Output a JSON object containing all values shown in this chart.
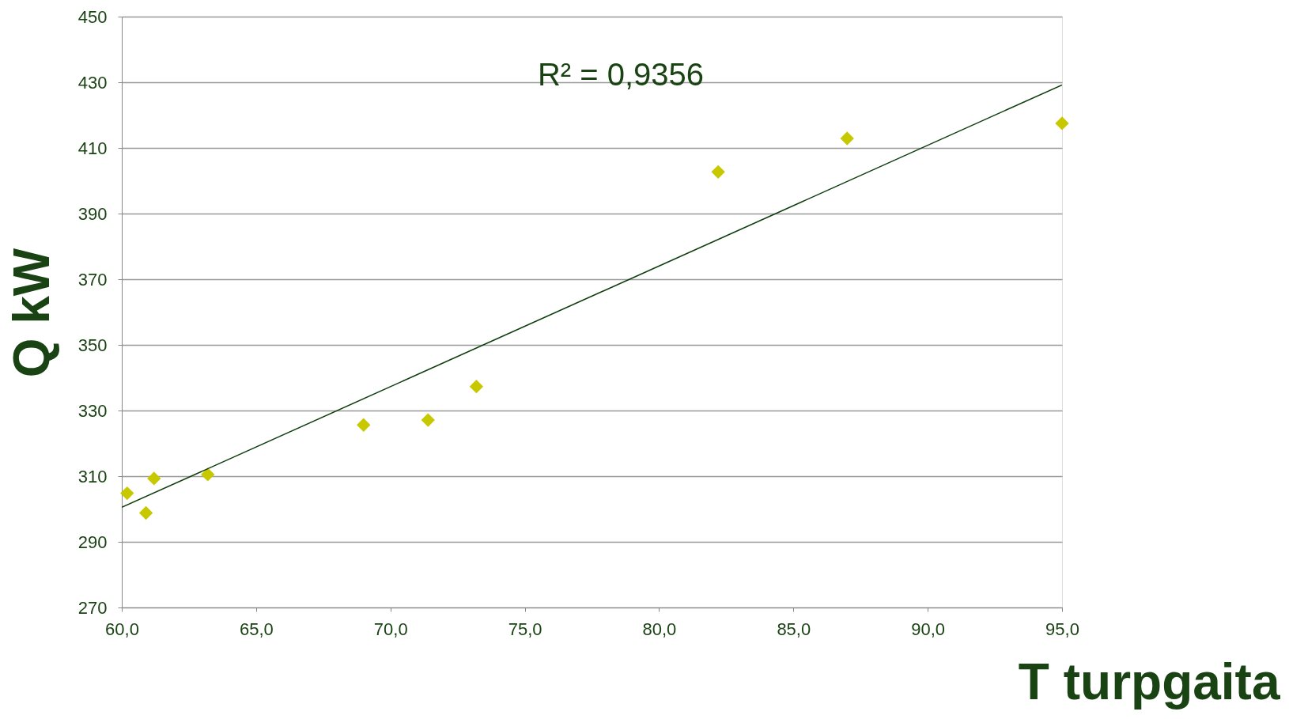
{
  "chart_data": {
    "type": "scatter",
    "xlabel": "T turpgaita",
    "ylabel": "Q kW",
    "annotations": [
      "R² = 0,9356"
    ],
    "xlim": [
      60,
      95
    ],
    "ylim": [
      270,
      450
    ],
    "xticks": [
      {
        "value": 60,
        "label": "60,0"
      },
      {
        "value": 65,
        "label": "65,0"
      },
      {
        "value": 70,
        "label": "70,0"
      },
      {
        "value": 75,
        "label": "75,0"
      },
      {
        "value": 80,
        "label": "80,0"
      },
      {
        "value": 85,
        "label": "85,0"
      },
      {
        "value": 90,
        "label": "90,0"
      },
      {
        "value": 95,
        "label": "95,0"
      }
    ],
    "yticks": [
      270,
      290,
      310,
      330,
      350,
      370,
      390,
      410,
      430,
      450
    ],
    "grid": "y",
    "series": [
      {
        "marker": "diamond",
        "color": "#c8c800",
        "x": [
          60.2,
          60.9,
          61.2,
          63.2,
          69.0,
          71.4,
          73.2,
          82.2,
          87.0,
          95.0
        ],
        "values": [
          304.8,
          298.8,
          309.3,
          310.5,
          325.6,
          327.1,
          337.3,
          402.7,
          412.9,
          417.5
        ]
      },
      {
        "type": "line",
        "marker": "none",
        "color": "#0d3d0d",
        "x": [
          60,
          95
        ],
        "values": [
          300.5,
          429.2
        ]
      }
    ]
  }
}
